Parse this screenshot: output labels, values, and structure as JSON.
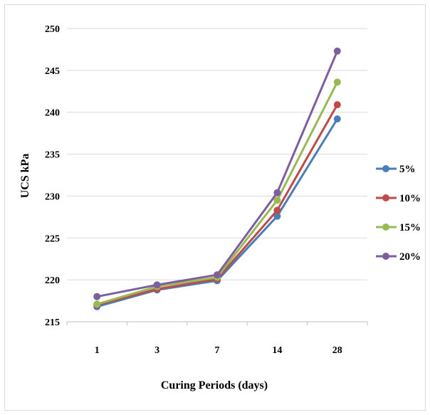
{
  "chart_data": {
    "type": "line",
    "title": "",
    "xlabel": "Curing Periods (days)",
    "ylabel": "UCS kPa",
    "categories": [
      "1",
      "3",
      "7",
      "14",
      "28"
    ],
    "ylim": [
      215,
      250
    ],
    "yticks": [
      215,
      220,
      225,
      230,
      235,
      240,
      245,
      250
    ],
    "grid": true,
    "legend_position": "right",
    "series": [
      {
        "name": "5%",
        "color": "#4a7ebb",
        "values": [
          216.8,
          218.8,
          219.9,
          227.6,
          239.2
        ]
      },
      {
        "name": "10%",
        "color": "#be4b48",
        "values": [
          217.0,
          218.9,
          220.1,
          228.3,
          240.9
        ]
      },
      {
        "name": "15%",
        "color": "#98b954",
        "values": [
          217.1,
          219.2,
          220.3,
          229.5,
          243.6
        ]
      },
      {
        "name": "20%",
        "color": "#7d5fa0",
        "values": [
          218.0,
          219.4,
          220.6,
          230.4,
          247.3
        ]
      }
    ]
  }
}
